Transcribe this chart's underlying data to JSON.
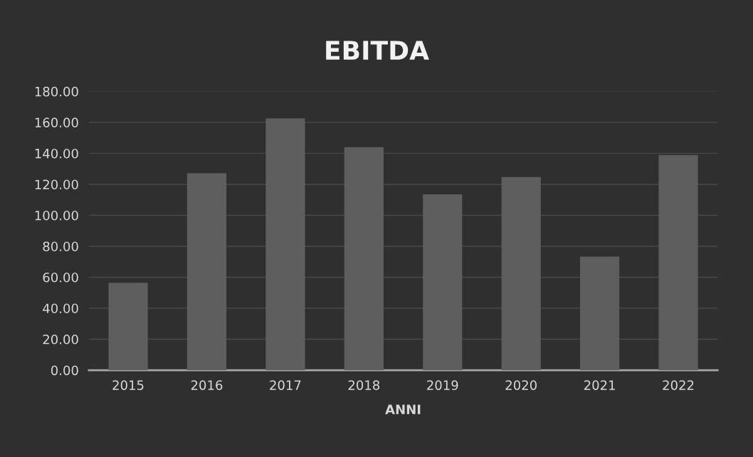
{
  "chart_data": {
    "type": "bar",
    "title": "EBITDA",
    "xlabel": "ANNI",
    "categories": [
      "2015",
      "2016",
      "2017",
      "2018",
      "2019",
      "2020",
      "2021",
      "2022"
    ],
    "values": [
      56.4,
      127.2,
      162.6,
      144.0,
      113.5,
      124.7,
      73.3,
      138.9
    ],
    "color": "#5e5e5e",
    "ylim": [
      0,
      180
    ],
    "yticks": [
      {
        "value": 0,
        "label": "0.00"
      },
      {
        "value": 20,
        "label": "20.00"
      },
      {
        "value": 40,
        "label": "40.00"
      },
      {
        "value": 60,
        "label": "60.00"
      },
      {
        "value": 80,
        "label": "80.00"
      },
      {
        "value": 100,
        "label": "100.00"
      },
      {
        "value": 120,
        "label": "120.00"
      },
      {
        "value": 140,
        "label": "140.00"
      },
      {
        "value": 160,
        "label": "160.00"
      },
      {
        "value": 180,
        "label": "180.00"
      }
    ],
    "grid": "y"
  }
}
